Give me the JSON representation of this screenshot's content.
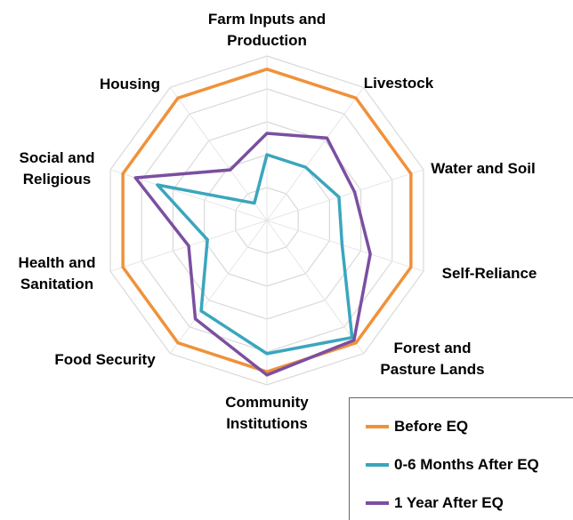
{
  "chart_data": {
    "type": "radar",
    "categories": [
      "Farm Inputs and Production",
      "Livestock",
      "Water and Soil",
      "Self-Reliance",
      "Forest and Pasture Lands",
      "Community Institutions",
      "Food Security",
      "Health and Sanitation",
      "Social and Religious",
      "Housing"
    ],
    "series": [
      {
        "name": "Before EQ",
        "color": "#f0913a",
        "values": [
          4.6,
          4.6,
          4.6,
          4.6,
          4.6,
          4.6,
          4.6,
          4.6,
          4.6,
          4.6
        ]
      },
      {
        "name": "0-6 Months After EQ",
        "color": "#3aa6bd",
        "values": [
          2.0,
          2.0,
          2.3,
          2.4,
          4.4,
          4.05,
          3.4,
          1.9,
          3.5,
          0.65
        ]
      },
      {
        "name": "1 Year After EQ",
        "color": "#7b4fa0",
        "values": [
          2.65,
          3.1,
          2.8,
          3.3,
          4.5,
          4.7,
          3.7,
          2.5,
          4.2,
          1.9
        ]
      }
    ],
    "ylim": [
      0,
      5
    ],
    "yticks": [
      1,
      2,
      3,
      4,
      5
    ],
    "grid": true,
    "legend": "bottom-right"
  }
}
